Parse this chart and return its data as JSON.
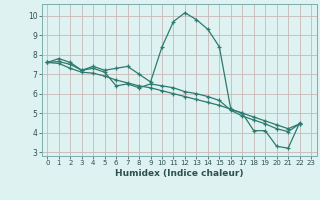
{
  "xlabel": "Humidex (Indice chaleur)",
  "x": [
    0,
    1,
    2,
    3,
    4,
    5,
    6,
    7,
    8,
    9,
    10,
    11,
    12,
    13,
    14,
    15,
    16,
    17,
    18,
    19,
    20,
    21,
    22,
    23
  ],
  "line1": [
    7.6,
    7.8,
    7.6,
    7.2,
    7.4,
    7.2,
    7.3,
    7.4,
    7.0,
    6.6,
    8.4,
    9.7,
    10.15,
    9.8,
    9.3,
    8.4,
    5.2,
    5.0,
    4.1,
    4.1,
    3.3,
    3.2,
    4.5,
    null
  ],
  "line2": [
    7.6,
    7.65,
    7.5,
    7.2,
    7.3,
    7.1,
    6.4,
    6.5,
    6.3,
    6.5,
    6.4,
    6.3,
    6.1,
    6.0,
    5.85,
    5.65,
    5.15,
    4.85,
    4.65,
    4.45,
    4.2,
    4.05,
    4.45,
    null
  ],
  "line3": [
    7.6,
    7.55,
    7.3,
    7.1,
    7.05,
    6.9,
    6.7,
    6.55,
    6.4,
    6.3,
    6.15,
    6.0,
    5.85,
    5.7,
    5.55,
    5.4,
    5.2,
    5.0,
    4.8,
    4.6,
    4.4,
    4.2,
    4.45,
    null
  ],
  "line_color": "#2d7a6e",
  "bg_color": "#dff2f2",
  "grid_color": "#c8b8b8",
  "ylim_min": 2.8,
  "ylim_max": 10.6,
  "yticks": [
    3,
    4,
    5,
    6,
    7,
    8,
    9,
    10
  ],
  "xlim_min": -0.5,
  "xlim_max": 23.5,
  "marker": "+"
}
